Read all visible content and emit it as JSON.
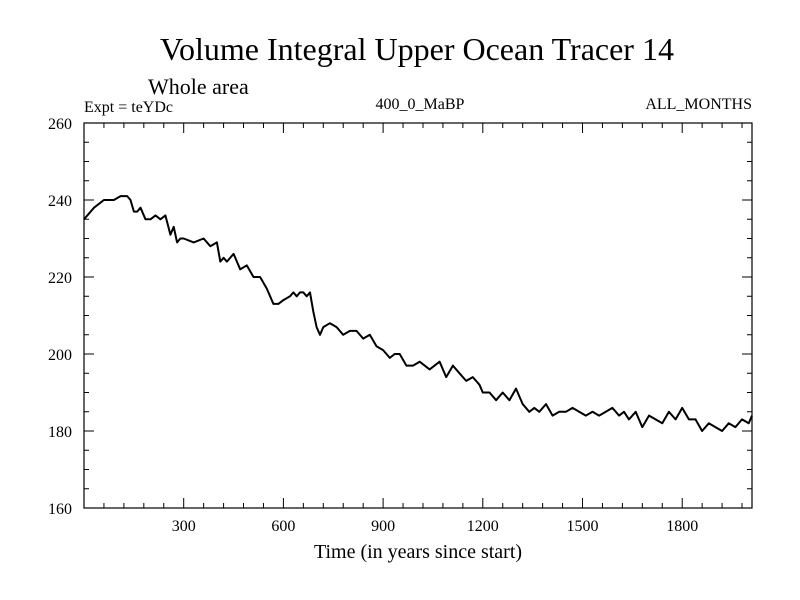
{
  "chart_data": {
    "type": "line",
    "title": "Volume Integral Upper Ocean Tracer 14",
    "subtitle": "Whole area",
    "left_label": "Expt = teYDc",
    "center_label": "400_0_MaBP",
    "right_label": "ALL_MONTHS",
    "xlabel": "Time (in years since start)",
    "ylabel": "",
    "xlim": [
      0,
      2010
    ],
    "ylim": [
      160,
      260
    ],
    "x_ticks": [
      300,
      600,
      900,
      1200,
      1500,
      1800
    ],
    "x_tick_labels": [
      "300",
      "600",
      "900",
      "1200",
      "1500",
      "1800"
    ],
    "x_minor_step": 60,
    "y_ticks": [
      160,
      180,
      200,
      220,
      240,
      260
    ],
    "y_tick_labels": [
      "160",
      "180",
      "200",
      "220",
      "240",
      "260"
    ],
    "y_minor_step": 5,
    "grid": false,
    "series": [
      {
        "name": "Tracer 14",
        "color": "#000000",
        "x": [
          0,
          30,
          60,
          90,
          110,
          130,
          140,
          150,
          160,
          170,
          185,
          200,
          215,
          230,
          245,
          260,
          270,
          280,
          290,
          300,
          330,
          360,
          380,
          400,
          410,
          420,
          430,
          450,
          470,
          490,
          510,
          530,
          550,
          570,
          585,
          600,
          620,
          630,
          640,
          650,
          660,
          670,
          680,
          690,
          700,
          710,
          720,
          740,
          760,
          780,
          800,
          820,
          840,
          860,
          880,
          900,
          920,
          935,
          950,
          970,
          990,
          1010,
          1040,
          1070,
          1090,
          1110,
          1130,
          1150,
          1170,
          1190,
          1200,
          1220,
          1240,
          1260,
          1280,
          1300,
          1320,
          1340,
          1355,
          1370,
          1390,
          1410,
          1430,
          1450,
          1470,
          1490,
          1510,
          1530,
          1550,
          1570,
          1590,
          1610,
          1625,
          1640,
          1660,
          1680,
          1700,
          1720,
          1740,
          1760,
          1780,
          1800,
          1820,
          1840,
          1860,
          1880,
          1900,
          1920,
          1940,
          1960,
          1980,
          2000,
          2010
        ],
        "values": [
          235,
          238,
          240,
          240,
          241,
          241,
          240,
          237,
          237,
          238,
          235,
          235,
          236,
          235,
          236,
          231,
          233,
          229,
          230,
          230,
          229,
          230,
          228,
          229,
          224,
          225,
          224,
          226,
          222,
          223,
          220,
          220,
          217,
          213,
          213,
          214,
          215,
          216,
          215,
          216,
          216,
          215,
          216,
          211,
          207,
          205,
          207,
          208,
          207,
          205,
          206,
          206,
          204,
          205,
          202,
          201,
          199,
          200,
          200,
          197,
          197,
          198,
          196,
          198,
          194,
          197,
          195,
          193,
          194,
          192,
          190,
          190,
          188,
          190,
          188,
          191,
          187,
          185,
          186,
          185,
          187,
          184,
          185,
          185,
          186,
          185,
          184,
          185,
          184,
          185,
          186,
          184,
          185,
          183,
          185,
          181,
          184,
          183,
          182,
          185,
          183,
          186,
          183,
          183,
          180,
          182,
          181,
          180,
          182,
          181,
          183,
          182,
          184
        ]
      }
    ]
  }
}
